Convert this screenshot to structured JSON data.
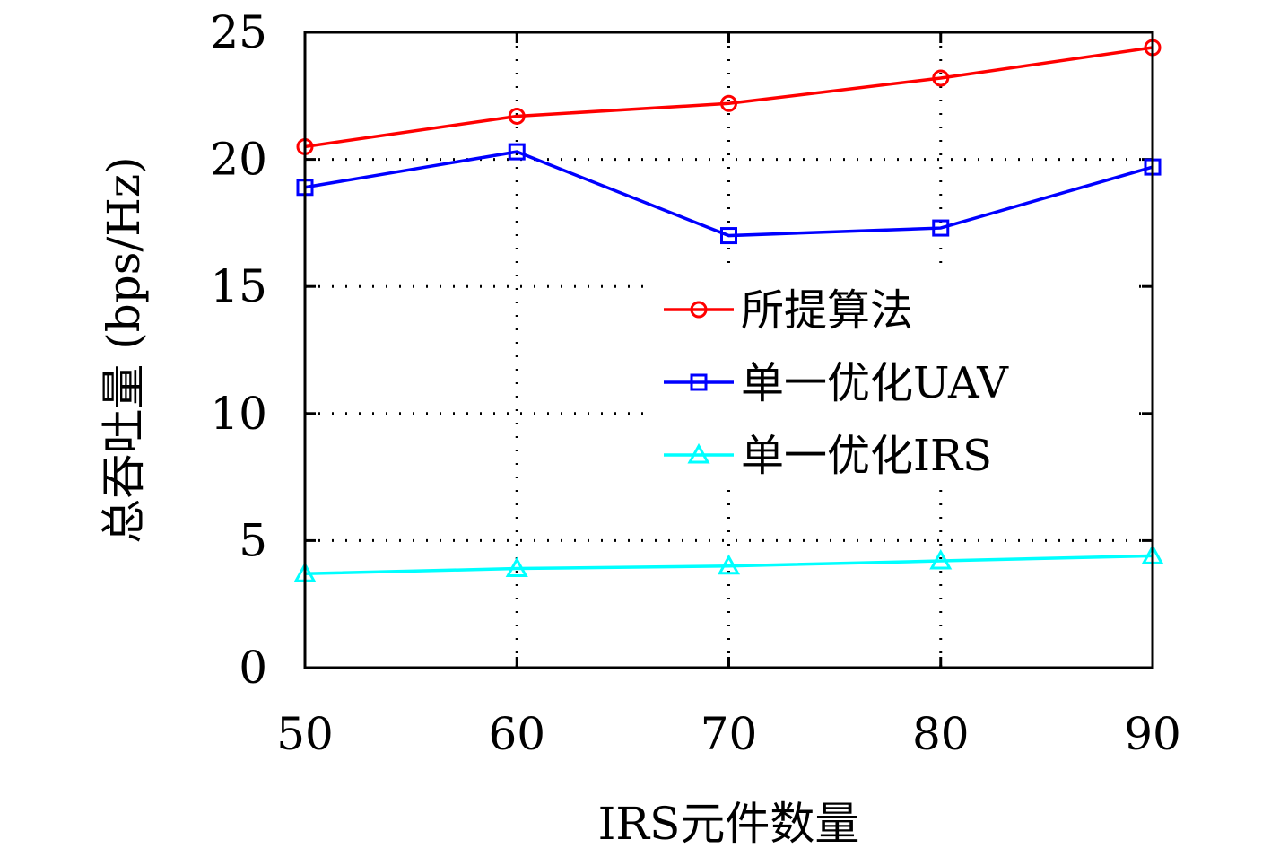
{
  "chart_data": {
    "type": "line",
    "title": "",
    "xlabel": "IRS元件数量",
    "ylabel": "总吞吐量 (bps/Hz)",
    "x": [
      50,
      60,
      70,
      80,
      90
    ],
    "xlim": [
      50,
      90
    ],
    "ylim": [
      0,
      25
    ],
    "xticks": [
      50,
      60,
      70,
      80,
      90
    ],
    "yticks": [
      0,
      5,
      10,
      15,
      20,
      25
    ],
    "grid": "dotted",
    "legend_position": "center-right",
    "series": [
      {
        "name": "所提算法",
        "color": "#ff0000",
        "marker": "circle",
        "values": [
          20.5,
          21.7,
          22.2,
          23.2,
          24.4
        ]
      },
      {
        "name": "单一优化UAV",
        "color": "#0000ff",
        "marker": "square",
        "values": [
          18.9,
          20.3,
          17.0,
          17.3,
          19.7
        ]
      },
      {
        "name": "单一优化IRS",
        "color": "#00ffff",
        "marker": "triangle",
        "values": [
          3.7,
          3.9,
          4.0,
          4.2,
          4.4
        ]
      }
    ]
  }
}
